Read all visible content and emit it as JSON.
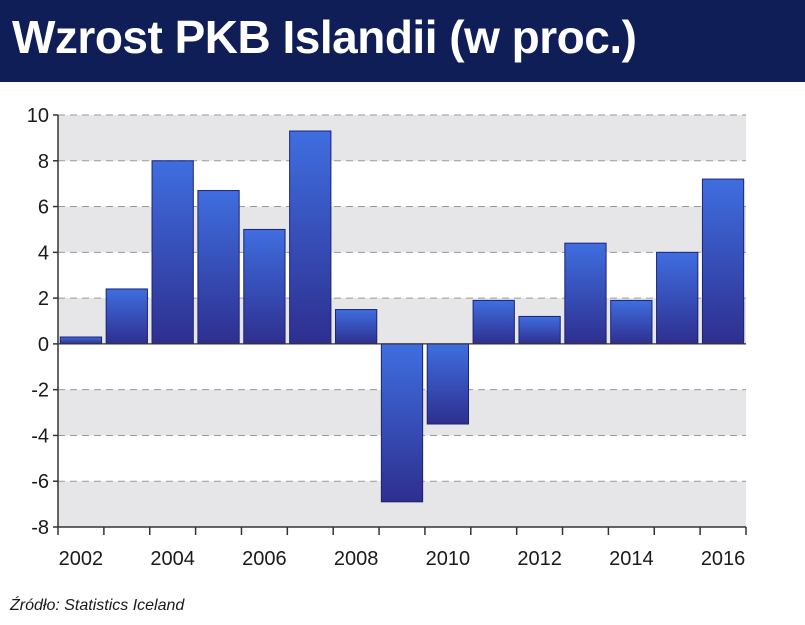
{
  "title": "Wzrost PKB Islandii (w proc.)",
  "source": "Źródło: Statistics Iceland",
  "colors": {
    "header_bg": "#0f1e56",
    "bar_top": "#3f6ee0",
    "bar_bottom": "#2e2f8f",
    "band": "#e6e6e8"
  },
  "chart_data": {
    "type": "bar",
    "title": "Wzrost PKB Islandii (w proc.)",
    "xlabel": "",
    "ylabel": "",
    "ylim": [
      -8,
      10
    ],
    "yticks": [
      -8,
      -6,
      -4,
      -2,
      0,
      2,
      4,
      6,
      8,
      10
    ],
    "xtick_labels": [
      "2002",
      "2004",
      "2006",
      "2008",
      "2010",
      "2012",
      "2014",
      "2016"
    ],
    "grid": "horizontal dashed",
    "categories": [
      "2002",
      "2003",
      "2004",
      "2005",
      "2006",
      "2007",
      "2008",
      "2009",
      "2010",
      "2011",
      "2012",
      "2013",
      "2014",
      "2015",
      "2016"
    ],
    "values": [
      0.3,
      2.4,
      8.0,
      6.7,
      5.0,
      9.3,
      1.5,
      -6.9,
      -3.5,
      1.9,
      1.2,
      4.4,
      1.9,
      4.0,
      7.2
    ]
  }
}
